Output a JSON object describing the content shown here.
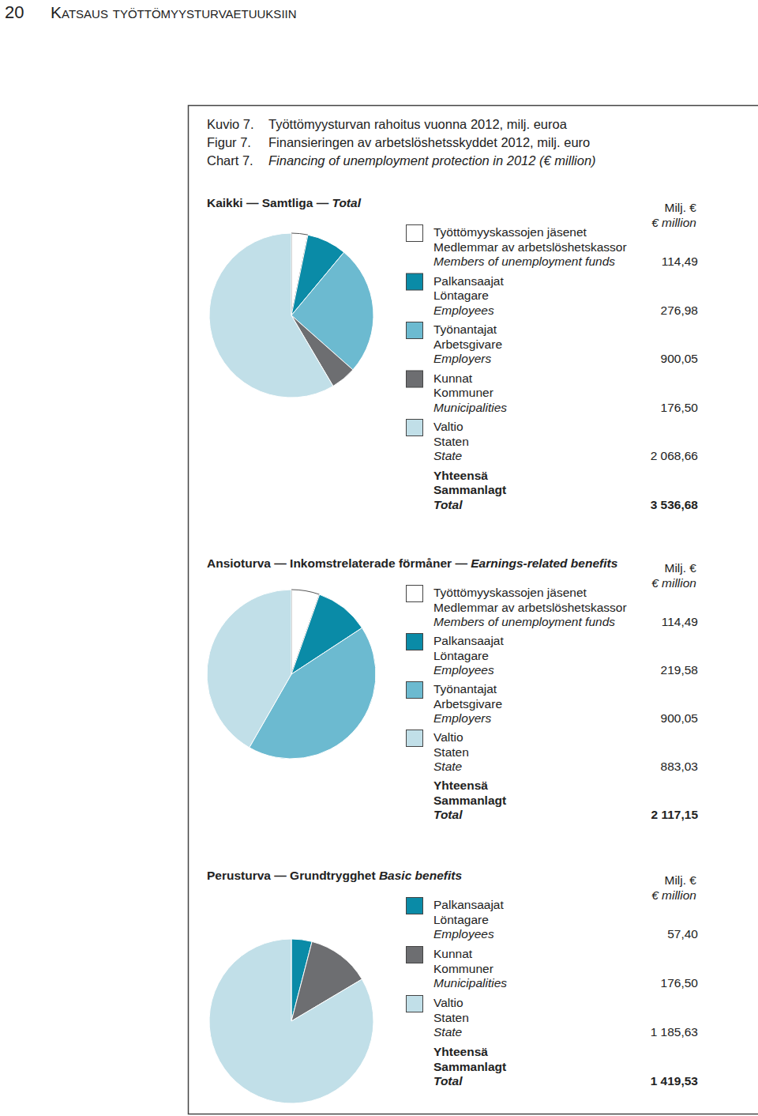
{
  "page": {
    "page_number": "20",
    "running_head": "Katsaus työttömyysturvaetuuksiin"
  },
  "figure_title": [
    {
      "label": "Kuvio 7.",
      "text": "Työttömyysturvan rahoitus vuonna 2012, milj. euroa"
    },
    {
      "label": "Figur 7.",
      "text": "Finansieringen av arbetslöshetsskyddet 2012, milj. euro"
    },
    {
      "label": "Chart 7.",
      "text": "Financing of unemployment protection in 2012 (€ million)"
    }
  ],
  "chart_data": [
    {
      "type": "pie",
      "title": [
        "Kaikki — ",
        "Samtliga — ",
        "Total"
      ],
      "unit_label": [
        "Milj. €",
        "€ million"
      ],
      "categories": [
        [
          "Työttömyyskassojen jäsenet",
          "Medlemmar av arbetslöshetskassor",
          "Members of unemployment funds"
        ],
        [
          "Palkansaajat",
          "Löntagare",
          "Employees"
        ],
        [
          "Työnantajat",
          "Arbetsgivare",
          "Employers"
        ],
        [
          "Kunnat",
          "Kommuner",
          "Municipalities"
        ],
        [
          "Valtio",
          "Staten",
          "State"
        ]
      ],
      "values": [
        114.49,
        276.98,
        900.05,
        176.5,
        2068.66
      ],
      "value_labels": [
        "114,49",
        "276,98",
        "900,05",
        "176,50",
        "2 068,66"
      ],
      "colors": [
        "#ffffff",
        "#0a8ba7",
        "#6cbad0",
        "#6d6e71",
        "#c1dfe8"
      ],
      "total": {
        "label": [
          "Yhteensä",
          "Sammanlagt",
          "Total"
        ],
        "value": 3536.68,
        "value_label": "3 536,68"
      }
    },
    {
      "type": "pie",
      "title": [
        "Ansioturva — ",
        "Inkomstrelaterade förmåner — ",
        "Earnings-related benefits"
      ],
      "unit_label": [
        "Milj. €",
        "€ million"
      ],
      "categories": [
        [
          "Työttömyyskassojen jäsenet",
          "Medlemmar av arbetslöshetskassor",
          "Members of unemployment funds"
        ],
        [
          "Palkansaajat",
          "Löntagare",
          "Employees"
        ],
        [
          "Työnantajat",
          "Arbetsgivare",
          "Employers"
        ],
        [
          "Valtio",
          "Staten",
          "State"
        ]
      ],
      "values": [
        114.49,
        219.58,
        900.05,
        883.03
      ],
      "value_labels": [
        "114,49",
        "219,58",
        "900,05",
        "883,03"
      ],
      "colors": [
        "#ffffff",
        "#0a8ba7",
        "#6cbad0",
        "#c1dfe8"
      ],
      "total": {
        "label": [
          "Yhteensä",
          "Sammanlagt",
          "Total"
        ],
        "value": 2117.15,
        "value_label": "2 117,15"
      }
    },
    {
      "type": "pie",
      "title": [
        "Perusturva — ",
        "Grundtrygghet ",
        "Basic benefits"
      ],
      "unit_label": [
        "Milj. €",
        "€ million"
      ],
      "categories": [
        [
          "Palkansaajat",
          "Löntagare",
          "Employees"
        ],
        [
          "Kunnat",
          "Kommuner",
          "Municipalities"
        ],
        [
          "Valtio",
          "Staten",
          "State"
        ]
      ],
      "values": [
        57.4,
        176.5,
        1185.63
      ],
      "value_labels": [
        "57,40",
        "176,50",
        "1 185,63"
      ],
      "colors": [
        "#0a8ba7",
        "#6d6e71",
        "#c1dfe8"
      ],
      "total": {
        "label": [
          "Yhteensä",
          "Sammanlagt",
          "Total"
        ],
        "value": 1419.53,
        "value_label": "1 419,53"
      }
    }
  ]
}
